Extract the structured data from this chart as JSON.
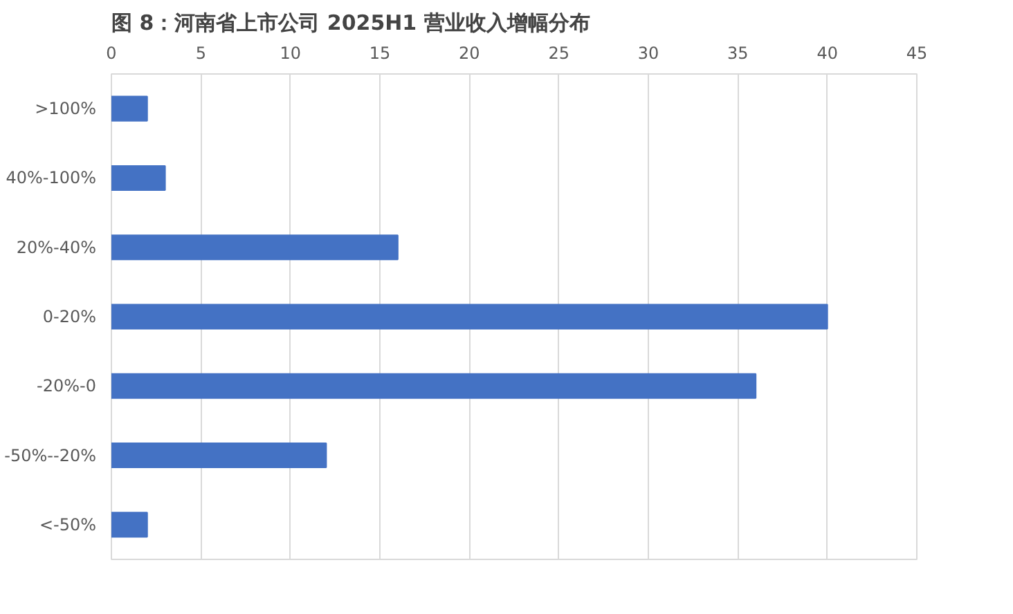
{
  "chart_data": {
    "type": "bar",
    "orientation": "horizontal",
    "title": "图 8：河南省上市公司 2025H1 营业收入增幅分布",
    "categories": [
      ">100%",
      "40%-100%",
      "20%-40%",
      "0-20%",
      "-20%-0",
      "-50%--20%",
      "<-50%"
    ],
    "values": [
      2,
      3,
      16,
      40,
      36,
      12,
      2
    ],
    "color": "#4472c4",
    "xlim": [
      0,
      45
    ],
    "xticks": [
      0,
      5,
      10,
      15,
      20,
      25,
      30,
      35,
      40,
      45
    ],
    "grid": "x"
  }
}
